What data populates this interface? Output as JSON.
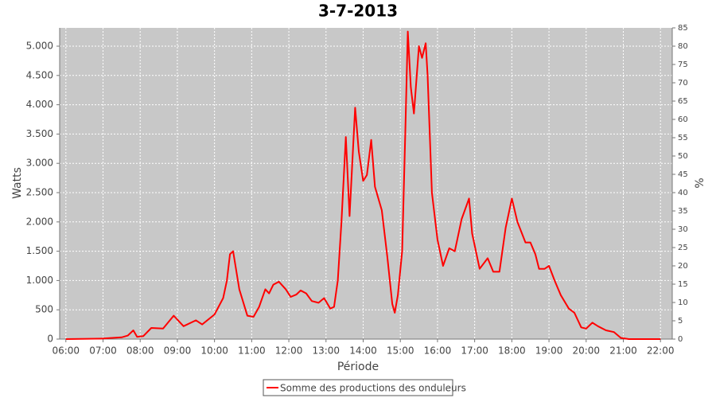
{
  "chart_data": {
    "type": "line",
    "title": "3-7-2013",
    "x_label": "Période",
    "y_label": "Watts",
    "y2_label": "%",
    "x": [
      "06:00",
      "07:00",
      "07:30",
      "07:40",
      "07:49",
      "07:55",
      "08:05",
      "08:18",
      "08:37",
      "08:54",
      "09:10",
      "09:30",
      "09:40",
      "10:00",
      "10:14",
      "10:20",
      "10:25",
      "10:30",
      "10:40",
      "10:53",
      "11:03",
      "11:12",
      "11:22",
      "11:28",
      "11:35",
      "11:44",
      "11:55",
      "12:03",
      "12:12",
      "12:19",
      "12:28",
      "12:37",
      "12:48",
      "12:57",
      "13:07",
      "13:13",
      "13:19",
      "13:25",
      "13:32",
      "13:38",
      "13:47",
      "13:53",
      "14:00",
      "14:06",
      "14:13",
      "14:19",
      "14:30",
      "14:39",
      "14:47",
      "14:51",
      "14:56",
      "15:03",
      "15:08",
      "15:12",
      "15:17",
      "15:22",
      "15:30",
      "15:35",
      "15:41",
      "15:44",
      "15:51",
      "16:00",
      "16:09",
      "16:19",
      "16:28",
      "16:39",
      "16:51",
      "16:56",
      "17:08",
      "17:21",
      "17:30",
      "17:40",
      "17:50",
      "18:00",
      "18:09",
      "18:22",
      "18:30",
      "18:38",
      "18:44",
      "18:53",
      "19:00",
      "19:09",
      "19:19",
      "19:32",
      "19:41",
      "19:52",
      "20:00",
      "20:10",
      "20:19",
      "20:32",
      "20:45",
      "20:56",
      "21:09",
      "22:00"
    ],
    "series": [
      {
        "name": "Somme des productions des onduleurs",
        "color": "#ff0000",
        "values": [
          0,
          10,
          30,
          60,
          150,
          40,
          50,
          190,
          180,
          400,
          220,
          320,
          250,
          420,
          700,
          1000,
          1450,
          1500,
          850,
          400,
          380,
          550,
          850,
          780,
          930,
          980,
          850,
          720,
          760,
          830,
          780,
          650,
          620,
          700,
          520,
          550,
          1000,
          2000,
          3450,
          2100,
          3950,
          3200,
          2700,
          2800,
          3400,
          2600,
          2200,
          1400,
          600,
          450,
          750,
          1500,
          3500,
          5250,
          4300,
          3850,
          5000,
          4800,
          5050,
          4500,
          2500,
          1700,
          1250,
          1550,
          1500,
          2050,
          2400,
          1800,
          1200,
          1380,
          1150,
          1150,
          1900,
          2400,
          2000,
          1650,
          1650,
          1450,
          1200,
          1200,
          1250,
          1000,
          750,
          520,
          450,
          200,
          180,
          280,
          220,
          150,
          120,
          20,
          0,
          0
        ]
      }
    ],
    "xlim": [
      "05:50",
      "22:19"
    ],
    "xticks": [
      "06:00",
      "07:00",
      "08:00",
      "09:00",
      "10:00",
      "11:00",
      "12:00",
      "13:00",
      "14:00",
      "15:00",
      "16:00",
      "17:00",
      "18:00",
      "19:00",
      "20:00",
      "21:00",
      "22:00"
    ],
    "ylim": [
      0,
      5312.5
    ],
    "yticks": [
      0,
      500,
      {
        "value": 1000,
        "label": "1.000"
      },
      {
        "value": 1500,
        "label": "1.500"
      },
      {
        "value": 2000,
        "label": "2.000"
      },
      {
        "value": 2500,
        "label": "2.500"
      },
      {
        "value": 3000,
        "label": "3.000"
      },
      {
        "value": 3500,
        "label": "3.500"
      },
      {
        "value": 4000,
        "label": "4.000"
      },
      {
        "value": 4500,
        "label": "4.500"
      },
      {
        "value": 5000,
        "label": "5.000"
      }
    ],
    "y2lim": [
      0,
      85
    ],
    "y2ticks": [
      0,
      5,
      10,
      15,
      20,
      25,
      30,
      35,
      40,
      45,
      50,
      55,
      60,
      65,
      70,
      75,
      80,
      85
    ],
    "grid": true,
    "legend": "bottom"
  }
}
